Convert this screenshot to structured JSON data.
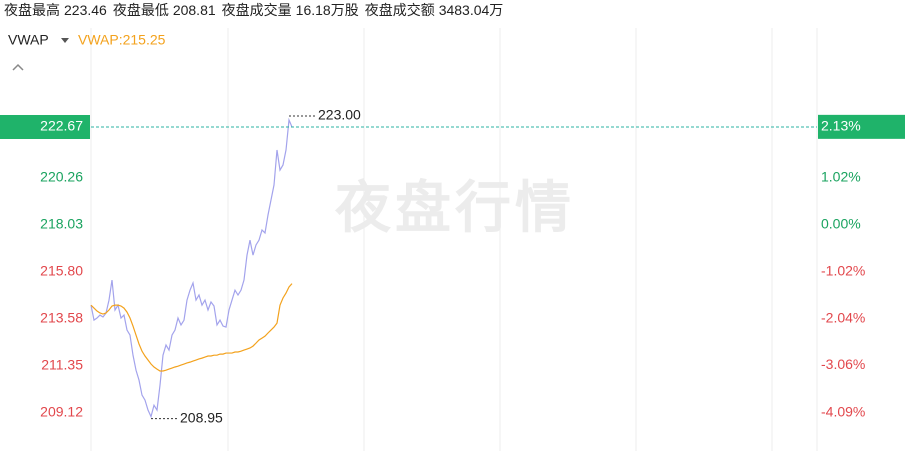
{
  "header": {
    "stats": [
      {
        "label": "夜盘最高",
        "value": "223.46"
      },
      {
        "label": "夜盘最低",
        "value": "208.81"
      },
      {
        "label": "夜盘成交量",
        "value": "16.18万股"
      },
      {
        "label": "夜盘成交额",
        "value": "3483.04万"
      }
    ]
  },
  "indicator_select": "VWAP",
  "chart_data": {
    "type": "line",
    "watermark": "夜盘行情",
    "ylim": [
      207.32,
      227.36
    ],
    "yticks": [
      220.26,
      218.03,
      215.8,
      213.58,
      211.35,
      209.12
    ],
    "ytick_labels": [
      "220.26",
      "218.03",
      "215.80",
      "213.58",
      "211.35",
      "209.12"
    ],
    "y2lim": [
      -4.92,
      4.28
    ],
    "y2ticks": [
      {
        "value": 1.02,
        "label": "1.02%"
      },
      {
        "value": 0,
        "label": "0.00%"
      },
      {
        "value": -1.02,
        "label": "-1.02%"
      },
      {
        "value": -2.04,
        "label": "-2.04%"
      },
      {
        "value": -3.06,
        "label": "-3.06%"
      },
      {
        "value": -4.09,
        "label": "-4.09%"
      }
    ],
    "up_color": "#1aa35f",
    "down_color": "#e2474c",
    "last": {
      "value": 222.67,
      "pct": {
        "value": 2.13,
        "label": "2.13%"
      },
      "color": "#1fb36a"
    },
    "max_label": "223.00",
    "min_label": "208.95",
    "series": [
      {
        "color": "#a3a3ec",
        "values": [
          214.23,
          213.52,
          213.62,
          213.76,
          213.67,
          213.85,
          214.47,
          215.42,
          214.0,
          214.23,
          213.62,
          213.76,
          213.05,
          212.81,
          211.86,
          211.15,
          210.68,
          209.97,
          209.73,
          209.26,
          208.95,
          209.49,
          209.26,
          210.44,
          211.86,
          212.34,
          212.1,
          212.81,
          213.05,
          213.62,
          213.29,
          213.52,
          214.47,
          214.94,
          215.28,
          214.47,
          214.71,
          214.23,
          214.47,
          214.0,
          214.38,
          214.19,
          213.29,
          213.52,
          213.24,
          213.19,
          214.0,
          214.47,
          214.94,
          214.71,
          214.94,
          215.42,
          216.6,
          217.31,
          216.6,
          217.08,
          217.31,
          217.79,
          217.65,
          218.5,
          219.21,
          219.92,
          221.58,
          220.63,
          220.87,
          221.58,
          223.0,
          222.67
        ]
      },
      {
        "name": "VWAP:215.25",
        "color": "#f3a21d",
        "values": [
          214.23,
          214.09,
          213.95,
          213.86,
          213.81,
          213.86,
          214.0,
          214.19,
          214.23,
          214.23,
          214.19,
          214.09,
          213.9,
          213.62,
          213.24,
          212.81,
          212.39,
          212.05,
          211.82,
          211.63,
          211.44,
          211.3,
          211.2,
          211.11,
          211.11,
          211.15,
          211.2,
          211.25,
          211.3,
          211.34,
          211.39,
          211.44,
          211.49,
          211.53,
          211.58,
          211.63,
          211.68,
          211.72,
          211.77,
          211.82,
          211.82,
          211.86,
          211.86,
          211.91,
          211.91,
          211.96,
          211.96,
          211.96,
          212.01,
          212.01,
          212.05,
          212.1,
          212.15,
          212.2,
          212.29,
          212.43,
          212.58,
          212.67,
          212.76,
          212.91,
          213.05,
          213.19,
          213.38,
          214.23,
          214.57,
          214.8,
          215.09,
          215.25
        ]
      }
    ]
  }
}
